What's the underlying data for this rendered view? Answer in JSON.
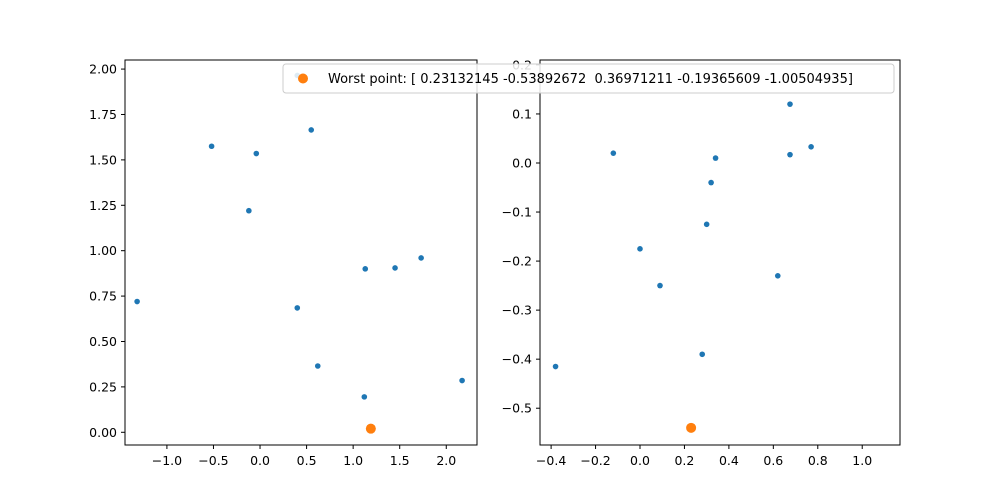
{
  "chart_data": [
    {
      "type": "scatter",
      "title": "",
      "xlabel": "",
      "ylabel": "",
      "xlim": [
        -1.45,
        2.33
      ],
      "ylim": [
        -0.07,
        2.05
      ],
      "x_ticks": [
        -1.0,
        -0.5,
        0.0,
        0.5,
        1.0,
        1.5,
        2.0
      ],
      "x_tick_labels": [
        "−1.0",
        "−0.5",
        "0.0",
        "0.5",
        "1.0",
        "1.5",
        "2.0"
      ],
      "y_ticks": [
        0.0,
        0.25,
        0.5,
        0.75,
        1.0,
        1.25,
        1.5,
        1.75,
        2.0
      ],
      "y_tick_labels": [
        "0.00",
        "0.25",
        "0.50",
        "0.75",
        "1.00",
        "1.25",
        "1.50",
        "1.75",
        "2.00"
      ],
      "series": [
        {
          "color": "#1f77b4",
          "marker_size": "small",
          "points": [
            [
              -1.32,
              0.72
            ],
            [
              -0.52,
              1.575
            ],
            [
              -0.04,
              1.535
            ],
            [
              -0.12,
              1.22
            ],
            [
              0.55,
              1.665
            ],
            [
              0.4,
              0.685
            ],
            [
              0.62,
              0.365
            ],
            [
              1.13,
              0.9
            ],
            [
              1.45,
              0.905
            ],
            [
              1.73,
              0.96
            ],
            [
              1.12,
              0.195
            ],
            [
              2.17,
              0.285
            ],
            [
              0.4,
              1.965
            ]
          ]
        },
        {
          "name": "Worst point: [ 0.23132145 -0.53892672  0.36971211 -0.19365609 -1.00504935]",
          "color": "#ff7f0e",
          "marker_size": "large",
          "points": [
            [
              1.19,
              0.02
            ]
          ]
        }
      ]
    },
    {
      "type": "scatter",
      "title": "",
      "xlabel": "",
      "ylabel": "",
      "xlim": [
        -0.45,
        1.17
      ],
      "ylim": [
        -0.575,
        0.21
      ],
      "x_ticks": [
        -0.4,
        -0.2,
        0.0,
        0.2,
        0.4,
        0.6,
        0.8,
        1.0
      ],
      "x_tick_labels": [
        "−0.4",
        "−0.2",
        "0.0",
        "0.2",
        "0.4",
        "0.6",
        "0.8",
        "1.0"
      ],
      "y_ticks": [
        -0.5,
        -0.4,
        -0.3,
        -0.2,
        -0.1,
        0.0,
        0.1,
        0.2
      ],
      "y_tick_labels": [
        "−0.5",
        "−0.4",
        "−0.3",
        "−0.2",
        "−0.1",
        "0.0",
        "0.1",
        "0.2"
      ],
      "series": [
        {
          "color": "#1f77b4",
          "marker_size": "small",
          "points": [
            [
              -0.12,
              0.02
            ],
            [
              0.0,
              -0.175
            ],
            [
              0.09,
              -0.25
            ],
            [
              0.3,
              -0.125
            ],
            [
              0.32,
              -0.04
            ],
            [
              0.34,
              0.01
            ],
            [
              0.28,
              -0.39
            ],
            [
              -0.38,
              -0.415
            ],
            [
              0.62,
              -0.23
            ],
            [
              0.675,
              0.12
            ],
            [
              0.675,
              0.017
            ],
            [
              0.77,
              0.033
            ]
          ]
        },
        {
          "name": "Worst point: [ 0.23132145 -0.53892672  0.36971211 -0.19365609 -1.00504935]",
          "color": "#ff7f0e",
          "marker_size": "large",
          "points": [
            [
              0.23,
              -0.54
            ]
          ]
        }
      ]
    }
  ],
  "legend": {
    "label": "Worst point: [ 0.23132145 -0.53892672  0.36971211 -0.19365609 -1.00504935]",
    "marker_color": "#ff7f0e",
    "placement": "upper-right of left axes"
  }
}
